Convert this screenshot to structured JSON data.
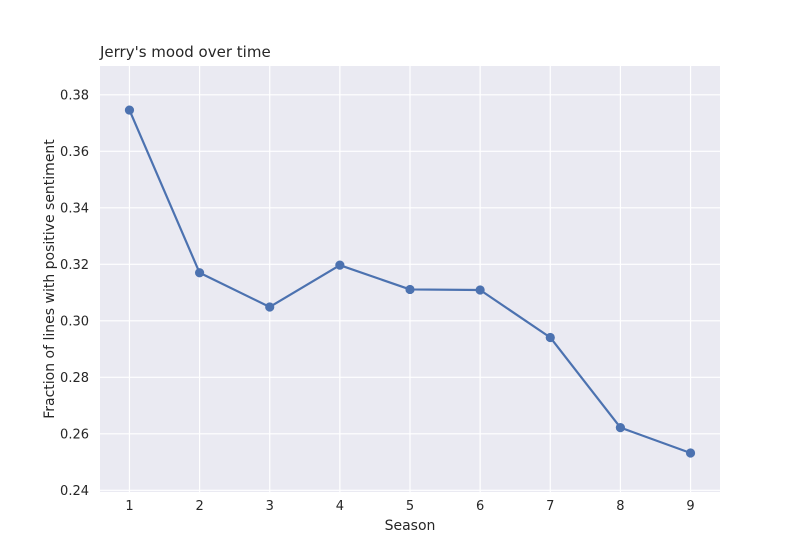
{
  "chart_data": {
    "type": "line",
    "title": "Jerry's mood over time",
    "xlabel": "Season",
    "ylabel": "Fraction of lines with positive sentiment",
    "x": [
      1,
      2,
      3,
      4,
      5,
      6,
      7,
      8,
      9
    ],
    "x_tick_labels": [
      "1",
      "2",
      "3",
      "4",
      "5",
      "6",
      "7",
      "8",
      "9"
    ],
    "y_ticks": [
      0.24,
      0.26,
      0.28,
      0.3,
      0.32,
      0.34,
      0.36,
      0.38
    ],
    "y_tick_labels": [
      "0.24",
      "0.26",
      "0.28",
      "0.30",
      "0.32",
      "0.34",
      "0.36",
      "0.38"
    ],
    "series": [
      {
        "values": [
          0.3746,
          0.317,
          0.3049,
          0.3197,
          0.3111,
          0.3109,
          0.2941,
          0.2622,
          0.2532
        ],
        "color": "#4c72b0",
        "marker": "circle"
      }
    ],
    "xlim": [
      0.58,
      9.42
    ],
    "ylim": [
      0.2394,
      0.3902
    ],
    "grid": true,
    "style": "seaborn-darkgrid",
    "colors": {
      "plot_background": "#eaeaf2",
      "grid": "#ffffff",
      "text": "#262626"
    }
  }
}
